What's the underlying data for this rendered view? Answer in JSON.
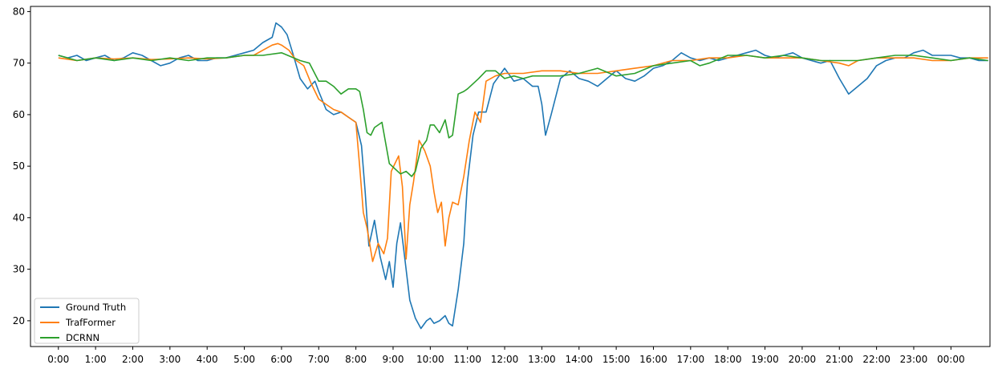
{
  "chart_data": {
    "type": "line",
    "title": "",
    "xlabel": "",
    "ylabel": "",
    "x_tick_labels": [
      "0:00",
      "1:00",
      "2:00",
      "3:00",
      "4:00",
      "5:00",
      "6:00",
      "7:00",
      "8:00",
      "9:00",
      "10:00",
      "11:00",
      "12:00",
      "13:00",
      "14:00",
      "15:00",
      "16:00",
      "17:00",
      "18:00",
      "19:00",
      "20:00",
      "21:00",
      "22:00",
      "23:00",
      "00:00"
    ],
    "x_tick_values": [
      0,
      1,
      2,
      3,
      4,
      5,
      6,
      7,
      8,
      9,
      10,
      11,
      12,
      13,
      14,
      15,
      16,
      17,
      18,
      19,
      20,
      21,
      22,
      23,
      24
    ],
    "xlim": [
      -0.75,
      25.05
    ],
    "y_tick_values": [
      20,
      30,
      40,
      50,
      60,
      70,
      80
    ],
    "ylim": [
      15.0,
      81.0
    ],
    "grid": false,
    "legend_position": "bottom-left",
    "series": [
      {
        "name": "Ground Truth",
        "color": "#1f77b4",
        "x": [
          0.0,
          0.25,
          0.5,
          0.75,
          1.0,
          1.25,
          1.5,
          1.75,
          2.0,
          2.25,
          2.5,
          2.75,
          3.0,
          3.25,
          3.5,
          3.75,
          4.0,
          4.25,
          4.5,
          4.75,
          5.0,
          5.25,
          5.5,
          5.75,
          5.85,
          6.0,
          6.15,
          6.3,
          6.5,
          6.7,
          6.9,
          7.0,
          7.2,
          7.4,
          7.6,
          7.8,
          8.0,
          8.15,
          8.25,
          8.35,
          8.5,
          8.65,
          8.8,
          8.9,
          9.0,
          9.1,
          9.2,
          9.3,
          9.45,
          9.6,
          9.75,
          9.9,
          10.0,
          10.1,
          10.25,
          10.4,
          10.5,
          10.6,
          10.75,
          10.9,
          11.0,
          11.15,
          11.3,
          11.5,
          11.7,
          11.85,
          12.0,
          12.25,
          12.5,
          12.75,
          12.9,
          13.0,
          13.1,
          13.25,
          13.5,
          13.75,
          14.0,
          14.25,
          14.5,
          14.75,
          15.0,
          15.25,
          15.5,
          15.75,
          16.0,
          16.25,
          16.5,
          16.75,
          17.0,
          17.25,
          17.5,
          17.75,
          18.0,
          18.25,
          18.5,
          18.75,
          19.0,
          19.25,
          19.5,
          19.75,
          20.0,
          20.25,
          20.5,
          20.75,
          21.0,
          21.25,
          21.5,
          21.75,
          22.0,
          22.25,
          22.5,
          22.75,
          23.0,
          23.25,
          23.5,
          23.75,
          24.0,
          24.25,
          24.5,
          24.75,
          25.0
        ],
        "values": [
          71.5,
          71.0,
          71.5,
          70.5,
          71.0,
          71.5,
          70.5,
          71.0,
          72.0,
          71.5,
          70.5,
          69.5,
          70.0,
          71.0,
          71.5,
          70.5,
          70.5,
          71.0,
          71.0,
          71.5,
          72.0,
          72.5,
          74.0,
          75.0,
          77.8,
          77.0,
          75.5,
          72.0,
          67.0,
          65.0,
          66.5,
          64.5,
          61.0,
          60.0,
          60.5,
          59.5,
          58.5,
          54.0,
          45.0,
          34.5,
          39.5,
          32.5,
          28.0,
          31.5,
          26.5,
          35.0,
          39.0,
          33.0,
          24.0,
          20.5,
          18.5,
          20.0,
          20.5,
          19.5,
          20.0,
          21.0,
          19.5,
          19.0,
          26.0,
          35.0,
          47.0,
          56.0,
          60.5,
          60.5,
          66.0,
          67.5,
          69.0,
          66.5,
          67.0,
          65.5,
          65.5,
          62.0,
          56.0,
          60.0,
          67.0,
          68.5,
          67.0,
          66.5,
          65.5,
          67.0,
          68.5,
          67.0,
          66.5,
          67.5,
          69.0,
          69.5,
          70.5,
          72.0,
          71.0,
          70.5,
          71.0,
          70.5,
          71.0,
          71.5,
          72.0,
          72.5,
          71.5,
          71.0,
          71.5,
          72.0,
          71.0,
          70.5,
          70.0,
          70.5,
          67.0,
          64.0,
          65.5,
          67.0,
          69.5,
          70.5,
          71.0,
          71.0,
          72.0,
          72.5,
          71.5,
          71.5,
          71.5,
          71.0,
          71.0,
          70.5,
          70.5
        ]
      },
      {
        "name": "TrafFormer",
        "color": "#ff7f0e",
        "x": [
          0.0,
          0.5,
          1.0,
          1.5,
          2.0,
          2.5,
          3.0,
          3.5,
          4.0,
          4.5,
          5.0,
          5.25,
          5.5,
          5.75,
          5.9,
          6.0,
          6.2,
          6.4,
          6.6,
          6.8,
          7.0,
          7.2,
          7.4,
          7.6,
          7.8,
          8.0,
          8.1,
          8.2,
          8.3,
          8.45,
          8.6,
          8.75,
          8.85,
          8.95,
          9.05,
          9.15,
          9.25,
          9.35,
          9.45,
          9.55,
          9.7,
          9.85,
          10.0,
          10.1,
          10.2,
          10.3,
          10.4,
          10.5,
          10.6,
          10.75,
          10.9,
          11.05,
          11.2,
          11.35,
          11.5,
          11.75,
          12.0,
          12.5,
          13.0,
          13.5,
          14.0,
          14.5,
          15.0,
          15.5,
          16.0,
          16.5,
          17.0,
          17.5,
          18.0,
          18.5,
          19.0,
          19.5,
          20.0,
          20.5,
          21.0,
          21.25,
          21.5,
          22.0,
          22.5,
          23.0,
          23.5,
          24.0,
          24.5,
          25.0
        ],
        "values": [
          71.0,
          70.5,
          71.0,
          70.8,
          71.0,
          70.7,
          70.8,
          71.0,
          70.8,
          71.0,
          71.5,
          71.5,
          72.5,
          73.5,
          73.8,
          73.5,
          72.5,
          70.5,
          69.5,
          66.0,
          63.0,
          62.0,
          61.0,
          60.5,
          59.5,
          58.5,
          50.0,
          41.0,
          38.0,
          31.5,
          35.0,
          33.0,
          36.0,
          49.0,
          50.5,
          52.0,
          46.0,
          32.0,
          42.5,
          47.0,
          55.0,
          53.0,
          50.0,
          45.0,
          41.0,
          43.0,
          34.5,
          40.0,
          43.0,
          42.5,
          48.0,
          55.0,
          60.5,
          58.5,
          66.5,
          67.5,
          68.0,
          68.0,
          68.5,
          68.5,
          68.0,
          68.0,
          68.5,
          69.0,
          69.5,
          70.5,
          70.5,
          71.0,
          71.0,
          71.5,
          71.0,
          71.0,
          71.0,
          70.5,
          70.0,
          69.5,
          70.5,
          71.0,
          71.0,
          71.0,
          70.5,
          70.5,
          71.0,
          71.0
        ]
      },
      {
        "name": "DCRNN",
        "color": "#2ca02c",
        "x": [
          0.0,
          0.5,
          1.0,
          1.5,
          2.0,
          2.5,
          3.0,
          3.5,
          4.0,
          4.5,
          5.0,
          5.5,
          6.0,
          6.5,
          6.75,
          7.0,
          7.2,
          7.4,
          7.6,
          7.8,
          8.0,
          8.1,
          8.2,
          8.3,
          8.4,
          8.5,
          8.7,
          8.9,
          9.05,
          9.2,
          9.35,
          9.5,
          9.6,
          9.75,
          9.9,
          10.0,
          10.1,
          10.25,
          10.4,
          10.5,
          10.6,
          10.75,
          10.9,
          11.0,
          11.15,
          11.3,
          11.5,
          11.75,
          12.0,
          12.25,
          12.5,
          12.75,
          13.0,
          13.5,
          14.0,
          14.5,
          15.0,
          15.5,
          16.0,
          16.5,
          17.0,
          17.25,
          17.5,
          18.0,
          18.5,
          19.0,
          19.5,
          20.0,
          20.5,
          21.0,
          21.5,
          22.0,
          22.5,
          23.0,
          23.5,
          24.0,
          24.5,
          25.0
        ],
        "values": [
          71.5,
          70.5,
          71.0,
          70.5,
          71.0,
          70.5,
          71.0,
          70.5,
          71.0,
          71.0,
          71.5,
          71.5,
          72.0,
          70.5,
          70.0,
          66.5,
          66.5,
          65.5,
          64.0,
          65.0,
          65.0,
          64.5,
          61.0,
          56.5,
          56.0,
          57.5,
          58.5,
          50.5,
          49.5,
          48.5,
          49.0,
          48.0,
          49.0,
          53.5,
          55.0,
          58.0,
          58.0,
          56.5,
          59.0,
          55.5,
          56.0,
          64.0,
          64.5,
          65.0,
          66.0,
          67.0,
          68.5,
          68.5,
          67.0,
          67.5,
          67.0,
          67.5,
          67.5,
          67.5,
          68.0,
          69.0,
          67.5,
          68.0,
          69.5,
          70.0,
          70.5,
          69.5,
          70.0,
          71.5,
          71.5,
          71.0,
          71.5,
          71.0,
          70.5,
          70.5,
          70.5,
          71.0,
          71.5,
          71.5,
          71.0,
          70.5,
          71.0,
          70.5
        ]
      }
    ]
  }
}
